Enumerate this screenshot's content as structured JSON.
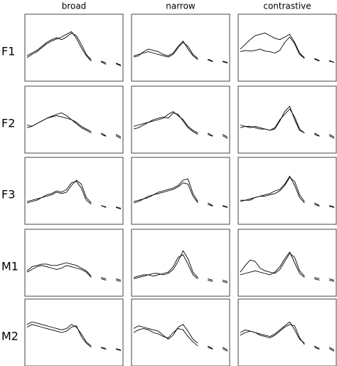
{
  "chart_data": {
    "type": "line",
    "columns": [
      "broad",
      "narrow",
      "contrastive"
    ],
    "rows": [
      "F1",
      "F2",
      "F3",
      "M1",
      "M2"
    ],
    "x": [
      0,
      1,
      2,
      3,
      4,
      5,
      6,
      7,
      8,
      9,
      10,
      11,
      12,
      13,
      14,
      15,
      16,
      17,
      18,
      19
    ],
    "xlim": [
      0,
      19
    ],
    "ylim": [
      0,
      100
    ],
    "color": "#000000",
    "panels": [
      [
        {
          "series": [
            {
              "values": [
                38,
                42,
                46,
                52,
                58,
                62,
                65,
                62,
                66,
                72,
                68,
                55,
                40,
                32,
                null,
                30,
                27,
                null,
                27,
                24
              ]
            },
            {
              "values": [
                35,
                40,
                44,
                50,
                56,
                60,
                63,
                66,
                70,
                74,
                64,
                50,
                38,
                30,
                null,
                29,
                25,
                null,
                26,
                23
              ]
            }
          ]
        },
        {
          "series": [
            {
              "values": [
                38,
                40,
                42,
                44,
                42,
                40,
                38,
                36,
                40,
                50,
                58,
                52,
                40,
                34,
                null,
                33,
                30,
                null,
                30,
                28
              ]
            },
            {
              "values": [
                36,
                38,
                44,
                48,
                46,
                44,
                40,
                38,
                42,
                52,
                60,
                48,
                38,
                32,
                null,
                32,
                29,
                null,
                29,
                27
              ]
            }
          ]
        },
        {
          "series": [
            {
              "values": [
                44,
                46,
                45,
                46,
                48,
                45,
                44,
                42,
                46,
                58,
                66,
                56,
                40,
                34,
                null,
                33,
                30,
                null,
                30,
                28
              ]
            },
            {
              "values": [
                48,
                55,
                62,
                68,
                70,
                72,
                68,
                64,
                62,
                66,
                70,
                58,
                42,
                35,
                null,
                34,
                31,
                null,
                31,
                28
              ]
            }
          ]
        }
      ],
      [
        {
          "series": [
            {
              "values": [
                42,
                40,
                44,
                48,
                52,
                54,
                56,
                54,
                52,
                50,
                46,
                40,
                36,
                32,
                null,
                30,
                26,
                null,
                28,
                24
              ]
            },
            {
              "values": [
                38,
                40,
                44,
                48,
                52,
                55,
                58,
                60,
                56,
                50,
                44,
                38,
                34,
                30,
                null,
                28,
                25,
                null,
                26,
                22
              ]
            }
          ]
        },
        {
          "series": [
            {
              "values": [
                40,
                42,
                44,
                46,
                48,
                50,
                52,
                58,
                62,
                56,
                50,
                40,
                34,
                30,
                null,
                30,
                26,
                null,
                28,
                24
              ]
            },
            {
              "values": [
                36,
                38,
                42,
                46,
                50,
                52,
                54,
                52,
                60,
                58,
                48,
                38,
                32,
                28,
                null,
                28,
                25,
                null,
                26,
                22
              ]
            }
          ]
        },
        {
          "series": [
            {
              "values": [
                42,
                40,
                38,
                40,
                38,
                36,
                34,
                36,
                48,
                62,
                70,
                50,
                34,
                30,
                null,
                30,
                26,
                null,
                28,
                24
              ]
            },
            {
              "values": [
                38,
                40,
                40,
                38,
                36,
                36,
                34,
                38,
                50,
                58,
                66,
                54,
                36,
                30,
                null,
                28,
                25,
                null,
                26,
                22
              ]
            }
          ]
        }
      ],
      [
        {
          "series": [
            {
              "values": [
                34,
                36,
                38,
                40,
                42,
                44,
                48,
                46,
                48,
                58,
                66,
                60,
                40,
                32,
                null,
                28,
                26,
                null,
                26,
                24
              ]
            },
            {
              "values": [
                32,
                34,
                36,
                40,
                44,
                46,
                50,
                48,
                52,
                62,
                64,
                54,
                36,
                30,
                null,
                28,
                25,
                null,
                25,
                23
              ]
            }
          ]
        },
        {
          "series": [
            {
              "values": [
                34,
                36,
                38,
                42,
                44,
                48,
                50,
                52,
                54,
                58,
                66,
                68,
                46,
                34,
                null,
                32,
                28,
                null,
                28,
                26
              ]
            },
            {
              "values": [
                32,
                34,
                38,
                40,
                44,
                46,
                48,
                50,
                52,
                56,
                62,
                60,
                42,
                32,
                null,
                30,
                27,
                null,
                27,
                25
              ]
            }
          ]
        },
        {
          "series": [
            {
              "values": [
                36,
                36,
                38,
                40,
                42,
                42,
                44,
                46,
                50,
                58,
                70,
                64,
                44,
                34,
                null,
                32,
                28,
                null,
                28,
                26
              ]
            },
            {
              "values": [
                34,
                36,
                36,
                40,
                42,
                44,
                46,
                50,
                52,
                60,
                72,
                58,
                40,
                32,
                null,
                30,
                27,
                null,
                27,
                25
              ]
            }
          ]
        }
      ],
      [
        {
          "series": [
            {
              "values": [
                38,
                44,
                46,
                48,
                48,
                46,
                46,
                48,
                50,
                48,
                46,
                42,
                38,
                30,
                null,
                28,
                26,
                null,
                26,
                24
              ]
            },
            {
              "values": [
                36,
                40,
                44,
                46,
                44,
                42,
                40,
                42,
                46,
                44,
                42,
                40,
                36,
                28,
                null,
                26,
                24,
                null,
                24,
                22
              ]
            }
          ]
        },
        {
          "series": [
            {
              "values": [
                28,
                30,
                32,
                32,
                34,
                34,
                32,
                34,
                40,
                52,
                68,
                56,
                36,
                28,
                null,
                26,
                24,
                null,
                24,
                22
              ]
            },
            {
              "values": [
                26,
                28,
                30,
                32,
                30,
                32,
                34,
                36,
                44,
                58,
                62,
                48,
                32,
                26,
                null,
                24,
                22,
                null,
                22,
                20
              ]
            }
          ]
        },
        {
          "series": [
            {
              "values": [
                36,
                46,
                54,
                52,
                42,
                38,
                36,
                34,
                40,
                52,
                64,
                58,
                38,
                30,
                null,
                28,
                26,
                null,
                26,
                24
              ]
            },
            {
              "values": [
                32,
                34,
                36,
                38,
                36,
                34,
                32,
                36,
                44,
                56,
                66,
                50,
                34,
                28,
                null,
                26,
                24,
                null,
                24,
                22
              ]
            }
          ]
        }
      ],
      [
        {
          "series": [
            {
              "values": [
                62,
                66,
                64,
                62,
                60,
                58,
                56,
                54,
                56,
                62,
                58,
                48,
                36,
                30,
                null,
                28,
                26,
                null,
                26,
                24
              ]
            },
            {
              "values": [
                58,
                62,
                60,
                58,
                56,
                54,
                52,
                50,
                52,
                58,
                60,
                44,
                34,
                28,
                null,
                27,
                25,
                null,
                25,
                23
              ]
            }
          ]
        },
        {
          "series": [
            {
              "values": [
                56,
                60,
                58,
                56,
                54,
                52,
                46,
                40,
                46,
                58,
                62,
                52,
                40,
                34,
                null,
                30,
                26,
                null,
                28,
                24
              ]
            },
            {
              "values": [
                50,
                54,
                56,
                54,
                50,
                48,
                44,
                42,
                50,
                56,
                54,
                44,
                36,
                30,
                null,
                28,
                25,
                null,
                26,
                22
              ]
            }
          ]
        },
        {
          "series": [
            {
              "values": [
                50,
                54,
                52,
                50,
                48,
                46,
                44,
                48,
                54,
                60,
                66,
                54,
                40,
                34,
                null,
                30,
                26,
                null,
                28,
                24
              ]
            },
            {
              "values": [
                46,
                50,
                52,
                50,
                46,
                44,
                42,
                46,
                52,
                58,
                62,
                60,
                42,
                32,
                null,
                28,
                25,
                null,
                26,
                22
              ]
            }
          ]
        }
      ]
    ]
  }
}
